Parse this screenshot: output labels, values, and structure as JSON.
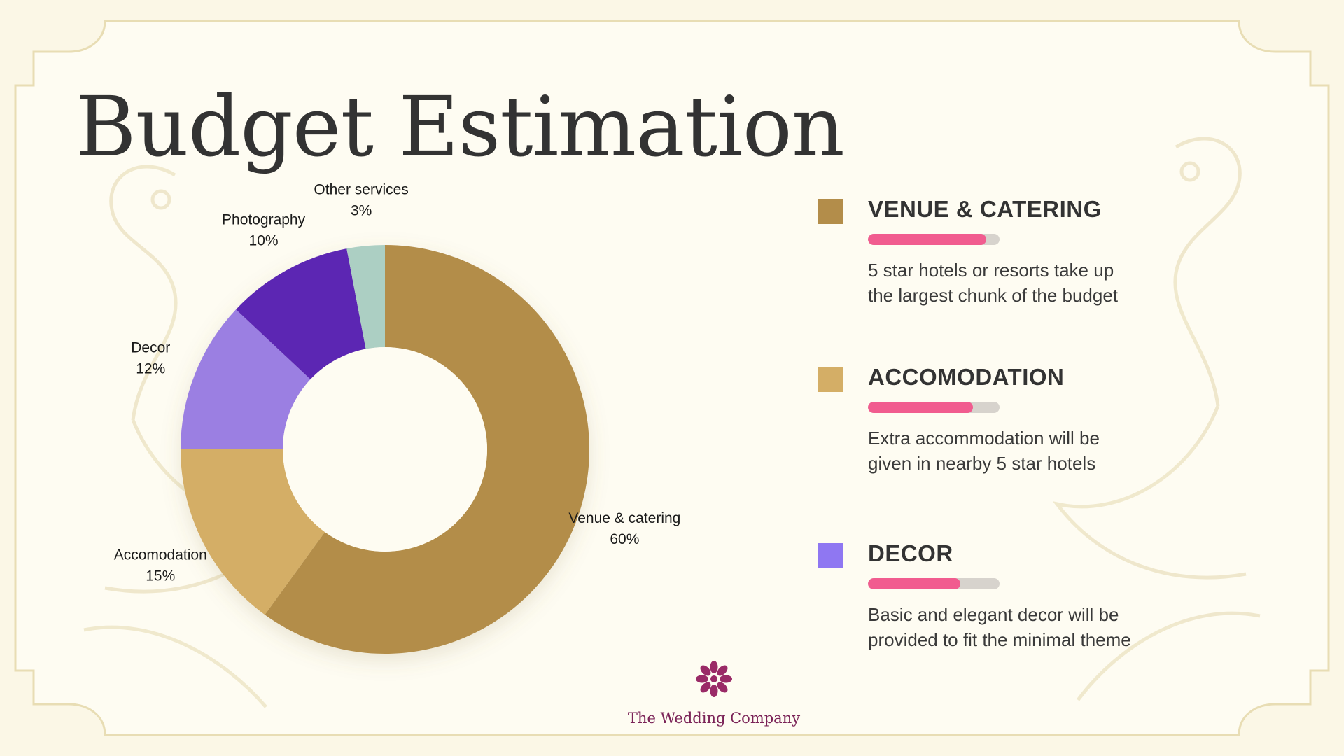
{
  "page": {
    "title": "Budget Estimation"
  },
  "chart_data": {
    "type": "pie",
    "categories": [
      "Venue & catering",
      "Accomodation",
      "Decor",
      "Photography",
      "Other services"
    ],
    "values": [
      60,
      15,
      12,
      10,
      3
    ],
    "value_labels": [
      "60%",
      "15%",
      "12%",
      "10%",
      "3%"
    ],
    "colors": [
      "#b38d4a",
      "#d4ae66",
      "#9b7fe2",
      "#5b26b3",
      "#accfc3"
    ],
    "donut": true,
    "start": "top, clockwise"
  },
  "legend": [
    {
      "title": "VENUE & CATERING",
      "color": "#b38d4a",
      "level": 0.9,
      "lines": [
        "5 star hotels or resorts take up",
        "the largest chunk of the budget"
      ]
    },
    {
      "title": "ACCOMODATION",
      "color": "#d4ae66",
      "level": 0.8,
      "lines": [
        "Extra accommodation will be",
        "given in nearby 5 star hotels"
      ]
    },
    {
      "title": "DECOR",
      "color": "#8f77f2",
      "level": 0.7,
      "lines": [
        "Basic and elegant decor will be",
        "provided to fit the minimal theme"
      ]
    }
  ],
  "progress_color": "#f15c8f",
  "brand": {
    "name": "The Wedding Company",
    "logo_icon": "lotus-flower-icon",
    "logo_color": "#9a2a67"
  },
  "theme": {
    "background": "#fbf7e6",
    "frame_border": "#e8ddb4"
  }
}
